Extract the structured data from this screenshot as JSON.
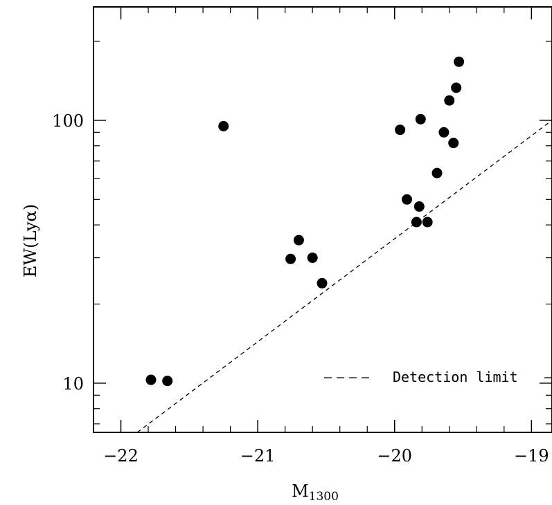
{
  "chart_data": {
    "type": "scatter",
    "title": "",
    "xlabel": "M",
    "xlabel_sub": "1300",
    "ylabel": "EW(Lyα)",
    "xlim": [
      -22.2,
      -18.85
    ],
    "ylim": [
      6.5,
      270
    ],
    "yscale": "log",
    "x_ticks": [
      -22,
      -21,
      -20,
      -19
    ],
    "x_tick_labels": [
      "−22",
      "−21",
      "−20",
      "−19"
    ],
    "y_ticks": [
      10,
      100
    ],
    "y_tick_labels": [
      "10",
      "100"
    ],
    "grid": false,
    "legend_position": "bottom-right",
    "series": [
      {
        "marker": "filled-circle",
        "color": "#000000",
        "x": [
          -21.78,
          -21.66,
          -21.25,
          -20.76,
          -20.7,
          -20.6,
          -20.53,
          -19.96,
          -19.91,
          -19.84,
          -19.82,
          -19.81,
          -19.76,
          -19.69,
          -19.64,
          -19.6,
          -19.57,
          -19.55,
          -19.53
        ],
        "y": [
          10.3,
          10.2,
          95,
          29.7,
          35,
          30,
          24,
          92,
          50,
          41,
          47,
          101,
          41,
          63,
          90,
          119,
          82,
          133,
          167
        ]
      },
      {
        "name": "Detection limit",
        "line_style": "dashed",
        "color": "#000000",
        "x": [
          -21.88,
          -18.85
        ],
        "y": [
          6.5,
          100
        ]
      }
    ]
  }
}
